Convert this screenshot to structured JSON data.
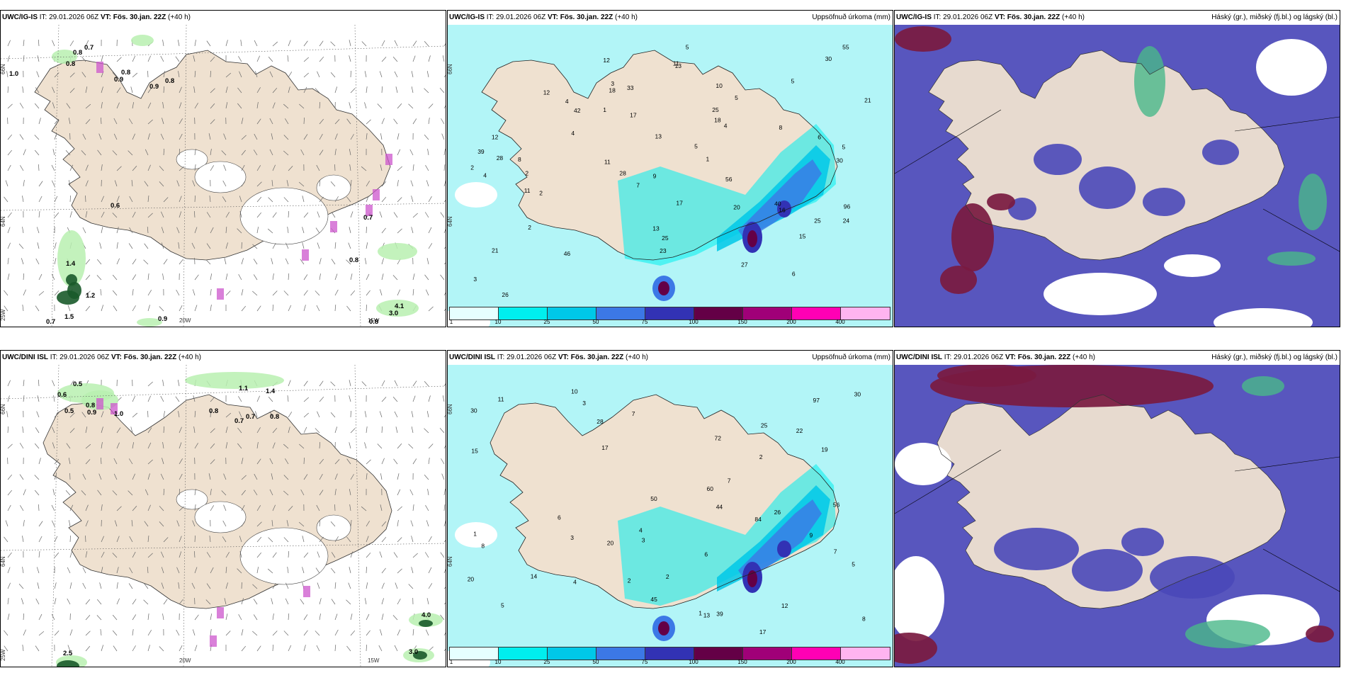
{
  "rows": [
    {
      "model": "UWC/IG-IS",
      "run": "29.01.2026 06Z",
      "valid": "Fös. 30.jan. 22Z",
      "lead": "(+40 h)"
    },
    {
      "model": "UWC/DINI ISL",
      "run": "29.01.2026 06Z",
      "valid": "Fös. 30.jan. 22Z",
      "lead": "(+40 h)"
    }
  ],
  "labels": {
    "it": "IT:",
    "vt": "VT:",
    "precip_title": "Uppsöfnuð úrkoma (mm)",
    "cloud_title": "Háský (gr.), miðský (fj.bl.) og lágský (bl.)"
  },
  "colorbar": {
    "ticks": [
      "1",
      "10",
      "25",
      "50",
      "75",
      "100",
      "150",
      "200",
      "400"
    ],
    "colors": [
      "#e6ffff",
      "#00eeee",
      "#00c8e8",
      "#3c78e6",
      "#3232b4",
      "#640046",
      "#a00078",
      "#ff00b4",
      "#ffb4f0"
    ]
  },
  "grid": {
    "lat_labels": [
      "66N",
      "64N"
    ],
    "lon_labels": [
      "25W",
      "20W",
      "15W"
    ]
  },
  "colors": {
    "land": "#efe1d0",
    "ocean_precip": "#b2f5f7",
    "cloud_low": "#4a48b8",
    "cloud_high": "#7a1a40",
    "wind_light": "#b8f0b0",
    "wind_dark": "#1a5a2a"
  },
  "wind_values_top": [
    "1.0",
    "0.8",
    "0.7",
    "0.8",
    "0.8",
    "0.9",
    "0.9",
    "0.8",
    "0.6",
    "0.7",
    "1.4",
    "1.2",
    "1.5",
    "0.7",
    "0.8",
    "0.9",
    "4.1",
    "3.0",
    "0.8"
  ],
  "wind_values_bottom": [
    "0.5",
    "0.6",
    "0.8",
    "0.9",
    "0.5",
    "1.0",
    "1.1",
    "1.4",
    "0.8",
    "0.7",
    "0.7",
    "0.8",
    "4.0",
    "3.0",
    "2.5"
  ],
  "precip_values_top": [
    "2",
    "5",
    "4",
    "17",
    "25",
    "1",
    "2",
    "2",
    "55",
    "2",
    "11",
    "1",
    "3",
    "4",
    "4",
    "6",
    "5",
    "13",
    "28",
    "12",
    "11",
    "4",
    "30",
    "33",
    "9",
    "5",
    "3",
    "13",
    "40",
    "8",
    "15",
    "28",
    "56",
    "42",
    "18",
    "26",
    "5",
    "7",
    "10",
    "39",
    "27",
    "17",
    "46",
    "12",
    "30",
    "21",
    "23",
    "24",
    "21",
    "25",
    "18",
    "16",
    "20",
    "12",
    "11",
    "13",
    "25",
    "6",
    "5",
    "96",
    "8"
  ],
  "precip_values_bottom": [
    "3",
    "2",
    "2",
    "1",
    "2",
    "1",
    "3",
    "5",
    "6",
    "7",
    "3",
    "4",
    "8",
    "12",
    "11",
    "10",
    "15",
    "7",
    "56",
    "72",
    "84",
    "97",
    "30",
    "60",
    "20",
    "26",
    "25",
    "44",
    "39",
    "50",
    "17",
    "17",
    "14",
    "13",
    "19",
    "20",
    "28",
    "45",
    "30",
    "22",
    "9",
    "4",
    "6",
    "5",
    "7",
    "8"
  ]
}
